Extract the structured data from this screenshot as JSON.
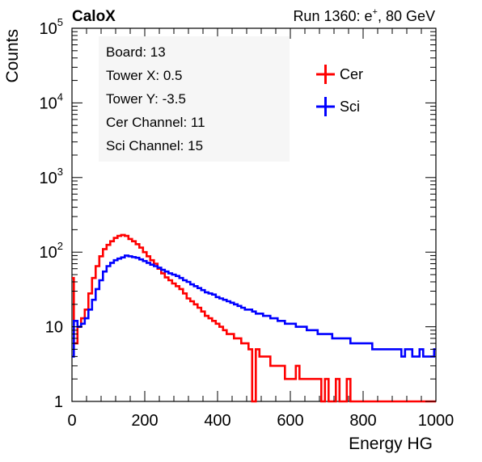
{
  "header": {
    "experiment": "CaloX",
    "run_prefix": "Run 1360: e",
    "run_sup": "+",
    "run_suffix": ", 80 GeV"
  },
  "info_box": {
    "lines": [
      "Board: 13",
      "Tower X: 0.5",
      "Tower Y: -3.5",
      "Cer Channel: 11",
      "Sci Channel: 15"
    ]
  },
  "chart_data": {
    "type": "line",
    "xlabel": "Energy HG",
    "ylabel": "Counts",
    "xlim": [
      0,
      1000
    ],
    "ylim": [
      1,
      100000
    ],
    "yscale": "log",
    "x_ticks": [
      0,
      200,
      400,
      600,
      800,
      1000
    ],
    "y_ticks": [
      {
        "value": 1,
        "base": "1",
        "exp": ""
      },
      {
        "value": 10,
        "base": "10",
        "exp": ""
      },
      {
        "value": 100,
        "base": "10",
        "exp": "2"
      },
      {
        "value": 1000,
        "base": "10",
        "exp": "3"
      },
      {
        "value": 10000,
        "base": "10",
        "exp": "4"
      },
      {
        "value": 100000,
        "base": "10",
        "exp": "5"
      }
    ],
    "legend_position": "top-right",
    "series": [
      {
        "name": "Cer",
        "color": "#ff0000",
        "x": [
          0,
          10,
          20,
          30,
          40,
          50,
          60,
          70,
          80,
          90,
          100,
          110,
          120,
          130,
          140,
          150,
          160,
          170,
          180,
          190,
          200,
          210,
          220,
          230,
          240,
          250,
          260,
          270,
          280,
          290,
          300,
          310,
          320,
          330,
          340,
          350,
          360,
          370,
          380,
          390,
          400,
          410,
          420,
          430,
          440,
          450,
          460,
          470,
          480,
          490,
          500,
          510,
          520,
          530,
          540,
          550,
          560,
          570,
          580,
          590,
          600,
          610,
          620,
          630,
          640,
          650,
          660,
          670,
          680,
          690,
          700,
          710,
          720,
          730,
          740,
          750,
          760,
          770,
          780,
          790,
          800,
          810,
          820,
          830,
          840,
          850,
          860,
          870,
          880,
          890,
          900,
          910,
          920,
          930,
          940,
          950,
          960,
          970,
          980,
          990,
          1000
        ],
        "y": [
          45,
          6,
          10,
          13,
          17,
          28,
          45,
          65,
          88,
          110,
          125,
          140,
          155,
          165,
          170,
          165,
          150,
          140,
          128,
          115,
          100,
          88,
          78,
          70,
          60,
          52,
          46,
          42,
          38,
          35,
          32,
          28,
          24,
          22,
          20,
          18,
          16,
          14,
          13,
          12,
          11,
          10,
          9,
          8,
          8,
          7,
          7,
          6,
          6,
          5,
          1,
          5,
          4,
          4,
          4,
          3,
          3,
          3,
          3,
          2,
          2,
          2,
          3,
          2,
          2,
          2,
          2,
          2,
          2,
          1,
          2,
          1,
          1,
          2,
          1,
          1,
          2,
          1,
          1,
          1,
          1,
          1,
          1,
          1,
          1,
          1,
          1,
          1,
          1,
          1,
          1,
          1,
          1,
          1,
          1,
          1,
          1,
          1,
          1,
          1,
          1
        ]
      },
      {
        "name": "Sci",
        "color": "#0000ff",
        "x": [
          0,
          10,
          20,
          30,
          40,
          50,
          60,
          70,
          80,
          90,
          100,
          110,
          120,
          130,
          140,
          150,
          160,
          170,
          180,
          190,
          200,
          210,
          220,
          230,
          240,
          250,
          260,
          270,
          280,
          290,
          300,
          310,
          320,
          330,
          340,
          350,
          360,
          370,
          380,
          390,
          400,
          410,
          420,
          430,
          440,
          450,
          460,
          470,
          480,
          490,
          500,
          510,
          520,
          530,
          540,
          550,
          560,
          570,
          580,
          590,
          600,
          610,
          620,
          630,
          640,
          650,
          660,
          670,
          680,
          690,
          700,
          710,
          720,
          730,
          740,
          750,
          760,
          770,
          780,
          790,
          800,
          810,
          820,
          830,
          840,
          850,
          860,
          870,
          880,
          890,
          900,
          910,
          920,
          930,
          940,
          950,
          960,
          970,
          980,
          990,
          1000
        ],
        "y": [
          4,
          12,
          10,
          11,
          13,
          17,
          23,
          32,
          42,
          55,
          65,
          72,
          78,
          82,
          85,
          90,
          88,
          86,
          84,
          80,
          76,
          72,
          68,
          65,
          62,
          58,
          55,
          52,
          50,
          48,
          45,
          42,
          40,
          37,
          35,
          33,
          31,
          29,
          28,
          27,
          25,
          24,
          23,
          22,
          21,
          20,
          19,
          18,
          17,
          17,
          16,
          15,
          15,
          14,
          14,
          13,
          13,
          12,
          12,
          11,
          11,
          11,
          10,
          10,
          10,
          9,
          9,
          9,
          8,
          8,
          8,
          8,
          7,
          7,
          7,
          7,
          7,
          6,
          6,
          6,
          6,
          6,
          6,
          5,
          5,
          5,
          5,
          5,
          5,
          5,
          5,
          4,
          5,
          5,
          4,
          4,
          5,
          4,
          4,
          4,
          5
        ]
      }
    ]
  }
}
